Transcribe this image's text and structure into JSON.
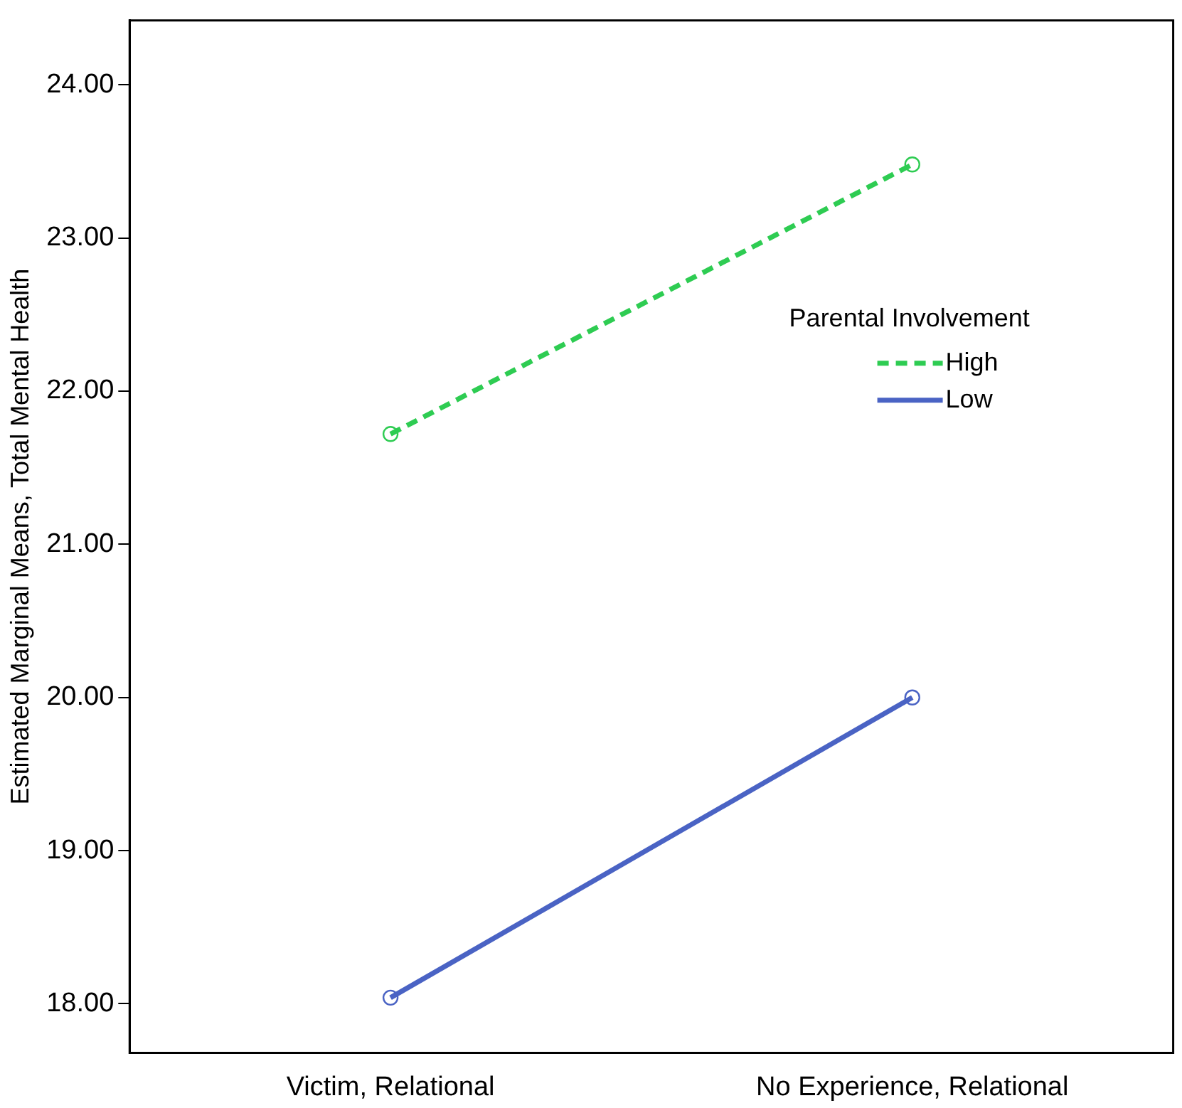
{
  "chart_data": {
    "type": "line",
    "ylabel": "Estimated Marginal Means, Total Mental Health",
    "legend_title": "Parental Involvement",
    "legend": "top right",
    "categories": [
      "Victim, Relational",
      "No Experience, Relational"
    ],
    "series": [
      {
        "name": "High",
        "color": "#2ecc52",
        "values": [
          21.72,
          23.48
        ],
        "line_style": "dashed"
      },
      {
        "name": "Low",
        "color": "#4a63c4",
        "values": [
          18.04,
          20.0
        ],
        "line_style": "solid"
      }
    ],
    "ylim": [
      17.68,
      24.42
    ],
    "yticks": [
      {
        "value": 18,
        "label": "18.00"
      },
      {
        "value": 19,
        "label": "19.00"
      },
      {
        "value": 20,
        "label": "20.00"
      },
      {
        "value": 21,
        "label": "21.00"
      },
      {
        "value": 22,
        "label": "22.00"
      },
      {
        "value": 23,
        "label": "23.00"
      },
      {
        "value": 24,
        "label": "24.00"
      }
    ],
    "grid": false,
    "marker": "circle"
  }
}
